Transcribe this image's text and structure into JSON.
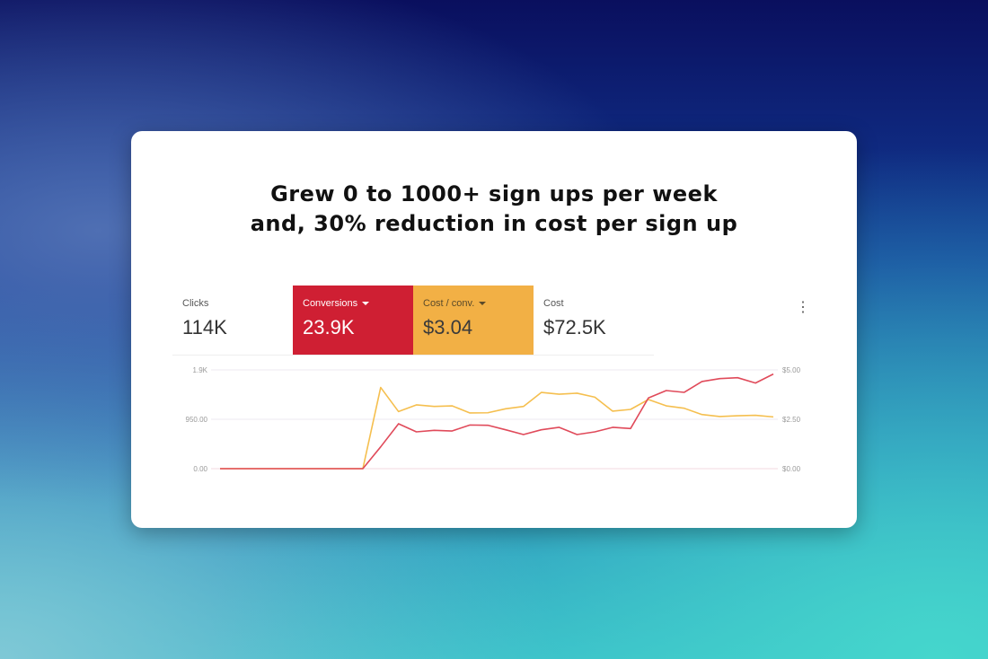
{
  "headline": {
    "line1": "Grew 0 to 1000+ sign ups per week",
    "line2": "and, 30% reduction in cost per sign up"
  },
  "tiles": [
    {
      "label": "Clicks",
      "value": "114K",
      "dropdown": false
    },
    {
      "label": "Conversions",
      "value": "23.9K",
      "dropdown": true,
      "color": "#cf1f33"
    },
    {
      "label": "Cost / conv.",
      "value": "$3.04",
      "dropdown": true,
      "color": "#f2b045"
    },
    {
      "label": "Cost",
      "value": "$72.5K",
      "dropdown": false
    }
  ],
  "more_icon": "more-vert-icon",
  "chart_data": {
    "type": "line",
    "left_axis": {
      "ticks": [
        "0.00",
        "950.00",
        "1.9K"
      ],
      "range": [
        0,
        1900
      ]
    },
    "right_axis": {
      "ticks": [
        "$0.00",
        "$2.50",
        "$5.00"
      ],
      "range": [
        0,
        5
      ]
    },
    "grid": true,
    "series": [
      {
        "name": "Conversions",
        "axis": "left",
        "color": "#e04a5a",
        "values": [
          0,
          0,
          0,
          0,
          0,
          0,
          0,
          0,
          0,
          420,
          864,
          708,
          737,
          725,
          840,
          835,
          748,
          656,
          748,
          795,
          656,
          708,
          795,
          772,
          1360,
          1503,
          1468,
          1676,
          1733,
          1750,
          1647,
          1820
        ]
      },
      {
        "name": "Cost / conv.",
        "axis": "right",
        "color": "#f5bf4f",
        "values": [
          0,
          0,
          0,
          0,
          0,
          0,
          0,
          0,
          0,
          4.11,
          2.89,
          3.23,
          3.15,
          3.18,
          2.82,
          2.83,
          3.03,
          3.15,
          3.86,
          3.77,
          3.82,
          3.62,
          2.91,
          3.0,
          3.5,
          3.18,
          3.06,
          2.74,
          2.64,
          2.68,
          2.7,
          2.62
        ]
      }
    ]
  }
}
